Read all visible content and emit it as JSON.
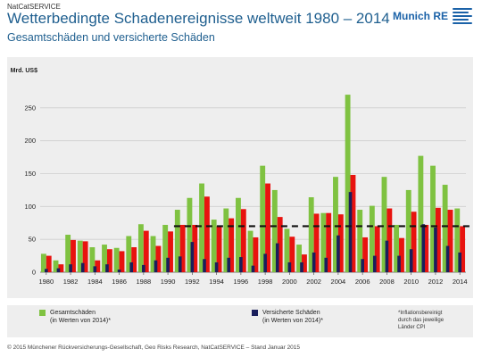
{
  "header": {
    "service": "NatCatSERVICE",
    "title": "Wetterbedingte Schadenereignisse weltweit 1980 – 2014",
    "subtitle": "Gesamtschäden und versicherte Schäden",
    "logo": "Munich RE"
  },
  "colors": {
    "green": "#7fc241",
    "red": "#e8130f",
    "navy": "#1a1f5c",
    "trend": "#111111"
  },
  "chart_data": {
    "type": "bar",
    "ylabel": "Mrd. US$",
    "ylim": [
      0,
      300
    ],
    "yticks": [
      0,
      50,
      100,
      150,
      200,
      250
    ],
    "x": [
      1980,
      1981,
      1982,
      1983,
      1984,
      1985,
      1986,
      1987,
      1988,
      1989,
      1990,
      1991,
      1992,
      1993,
      1994,
      1995,
      1996,
      1997,
      1998,
      1999,
      2000,
      2001,
      2002,
      2003,
      2004,
      2005,
      2006,
      2007,
      2008,
      2009,
      2010,
      2011,
      2012,
      2013,
      2014
    ],
    "xtick_labels": [
      "1980",
      "1982",
      "1984",
      "1986",
      "1988",
      "1990",
      "1992",
      "1994",
      "1996",
      "1998",
      "2000",
      "2002",
      "2004",
      "2006",
      "2008",
      "2010",
      "2012",
      "2014"
    ],
    "series": [
      {
        "name": "Gesamtschäden (in Werten von 2014)*",
        "color": "green",
        "values": [
          28,
          18,
          57,
          48,
          38,
          42,
          37,
          55,
          73,
          55,
          72,
          95,
          113,
          135,
          80,
          97,
          113,
          63,
          162,
          125,
          66,
          42,
          114,
          90,
          145,
          270,
          95,
          101,
          145,
          72,
          125,
          177,
          162,
          133,
          97
        ]
      },
      {
        "name": "Versicherte Schäden (in Werten von 2014)*",
        "color": "navy",
        "values": [
          5,
          6,
          12,
          14,
          9,
          12,
          4,
          15,
          11,
          18,
          22,
          24,
          46,
          20,
          15,
          22,
          23,
          10,
          28,
          44,
          15,
          15,
          30,
          22,
          56,
          122,
          20,
          25,
          48,
          25,
          35,
          73,
          68,
          40,
          30
        ]
      }
    ],
    "moving_average": [
      25,
      12,
      49,
      47,
      18,
      35,
      32,
      38,
      63,
      40,
      62,
      72,
      72,
      115,
      70,
      82,
      96,
      53,
      135,
      84,
      54,
      27,
      89,
      90,
      88,
      148,
      53,
      70,
      97,
      52,
      92,
      72,
      98,
      95,
      70
    ],
    "trend_value": 70,
    "trend_start_year": 1991
  },
  "legend": {
    "total_label_1": "Gesamtschäden",
    "total_label_2": "(in Werten von 2014)*",
    "insured_label_1": "Versicherte Schäden",
    "insured_label_2": "(in Werten von 2014)*",
    "note_1": "*Inflationsbereinigt",
    "note_2": "durch das jeweilige",
    "note_3": "Länder CPI"
  },
  "footer": "© 2015 Münchener Rückversicherungs-Gesellschaft, Geo Risks Research, NatCatSERVICE – Stand Januar 2015"
}
